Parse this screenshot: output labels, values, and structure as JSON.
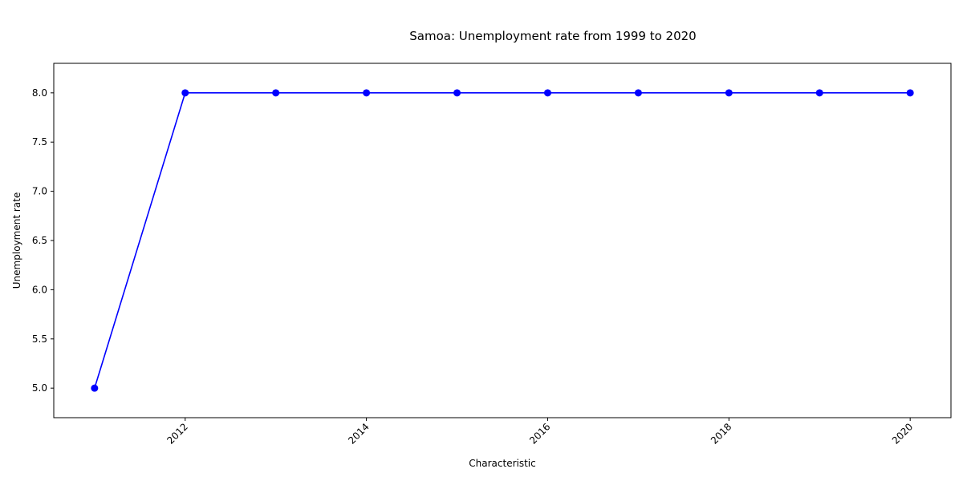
{
  "chart_data": {
    "type": "line",
    "title": "Samoa: Unemployment rate from 1999 to 2020",
    "xlabel": "Characteristic",
    "ylabel": "Unemployment rate",
    "x": [
      2011,
      2012,
      2013,
      2014,
      2015,
      2016,
      2017,
      2018,
      2019,
      2020
    ],
    "series": [
      {
        "values": [
          5.0,
          8.0,
          8.0,
          8.0,
          8.0,
          8.0,
          8.0,
          8.0,
          8.0,
          8.0
        ],
        "color": "#0000ff"
      }
    ],
    "xlim": [
      2010.55,
      2020.45
    ],
    "ylim": [
      4.7,
      8.3
    ],
    "x_ticks": [
      2012,
      2014,
      2016,
      2018,
      2020
    ],
    "x_tick_labels": [
      "2012",
      "2014",
      "2016",
      "2018",
      "2020"
    ],
    "y_ticks": [
      5.0,
      5.5,
      6.0,
      6.5,
      7.0,
      7.5,
      8.0
    ],
    "y_tick_labels": [
      "5.0",
      "5.5",
      "6.0",
      "6.5",
      "7.0",
      "7.5",
      "8.0"
    ],
    "grid": false,
    "legend": "none",
    "marker": "circle"
  }
}
